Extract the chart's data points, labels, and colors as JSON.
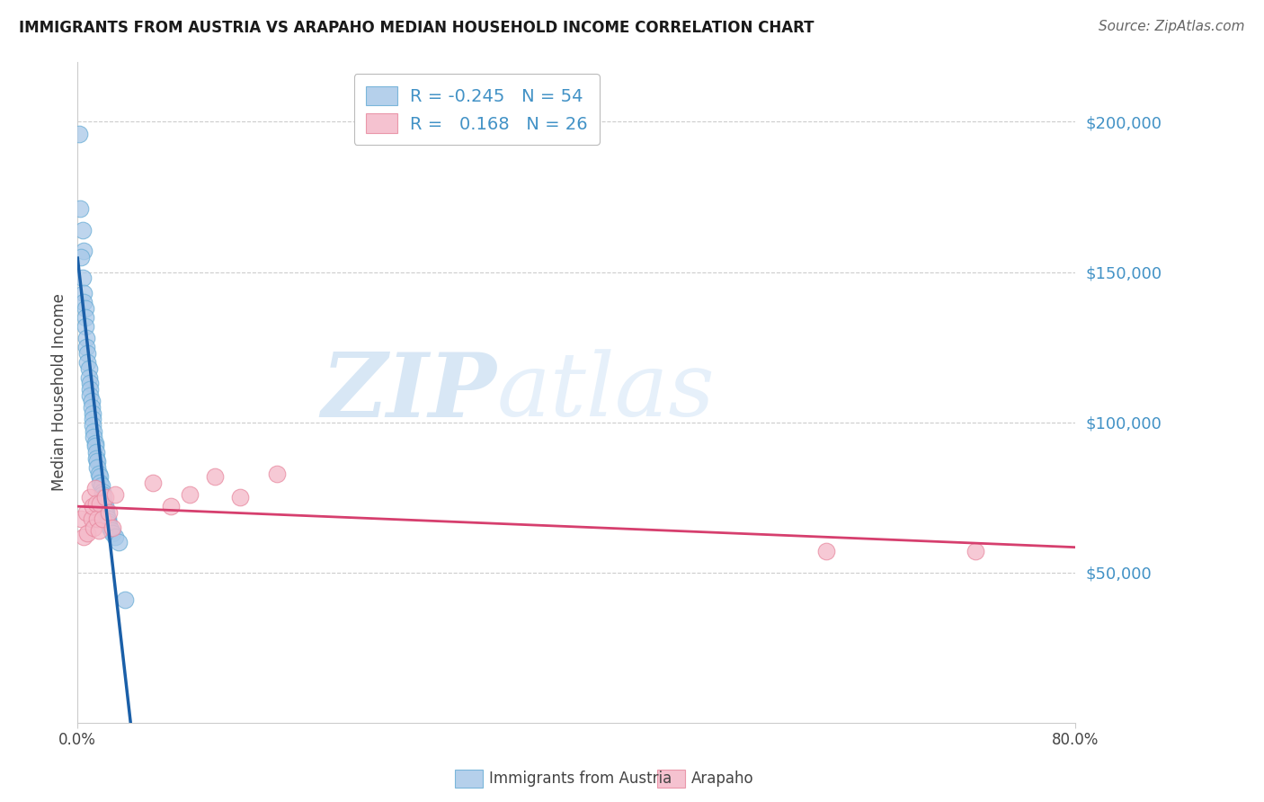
{
  "title": "IMMIGRANTS FROM AUSTRIA VS ARAPAHO MEDIAN HOUSEHOLD INCOME CORRELATION CHART",
  "source": "Source: ZipAtlas.com",
  "ylabel": "Median Household Income",
  "x_min": 0.0,
  "x_max": 0.8,
  "y_min": 0,
  "y_max": 220000,
  "blue_color": "#a8c8e8",
  "blue_edge_color": "#6baed6",
  "pink_color": "#f4b8c8",
  "pink_edge_color": "#e88aa0",
  "blue_line_color": "#1a5fa8",
  "pink_line_color": "#d63f6e",
  "right_label_color": "#4292c6",
  "legend_blue_label": "Immigrants from Austria",
  "legend_pink_label": "Arapaho",
  "legend_r_blue": "-0.245",
  "legend_n_blue": "54",
  "legend_r_pink": "0.168",
  "legend_n_pink": "26",
  "blue_scatter_x": [
    0.001,
    0.002,
    0.004,
    0.005,
    0.003,
    0.004,
    0.005,
    0.005,
    0.006,
    0.006,
    0.006,
    0.007,
    0.007,
    0.008,
    0.008,
    0.009,
    0.009,
    0.01,
    0.01,
    0.01,
    0.011,
    0.011,
    0.012,
    0.012,
    0.012,
    0.013,
    0.013,
    0.014,
    0.014,
    0.015,
    0.015,
    0.016,
    0.016,
    0.017,
    0.018,
    0.018,
    0.019,
    0.02,
    0.02,
    0.021,
    0.021,
    0.022,
    0.022,
    0.023,
    0.023,
    0.024,
    0.024,
    0.025,
    0.026,
    0.027,
    0.028,
    0.03,
    0.033,
    0.038
  ],
  "blue_scatter_y": [
    196000,
    171000,
    164000,
    157000,
    155000,
    148000,
    143000,
    140000,
    138000,
    135000,
    132000,
    128000,
    125000,
    123000,
    120000,
    118000,
    115000,
    113000,
    111000,
    109000,
    107000,
    105000,
    103000,
    101000,
    99000,
    97000,
    95000,
    93000,
    92000,
    90000,
    88000,
    87000,
    85000,
    83000,
    82000,
    80000,
    79000,
    77000,
    76000,
    75000,
    73000,
    72000,
    71000,
    70000,
    69000,
    68000,
    67000,
    66000,
    65000,
    64000,
    63000,
    62000,
    60000,
    41000
  ],
  "pink_scatter_x": [
    0.003,
    0.005,
    0.007,
    0.008,
    0.01,
    0.011,
    0.012,
    0.013,
    0.014,
    0.015,
    0.016,
    0.017,
    0.018,
    0.02,
    0.022,
    0.025,
    0.028,
    0.03,
    0.06,
    0.075,
    0.09,
    0.11,
    0.13,
    0.16,
    0.6,
    0.72
  ],
  "pink_scatter_y": [
    68000,
    62000,
    70000,
    63000,
    75000,
    68000,
    72000,
    65000,
    78000,
    73000,
    68000,
    64000,
    73000,
    68000,
    75000,
    70000,
    65000,
    76000,
    80000,
    72000,
    76000,
    82000,
    75000,
    83000,
    57000,
    57000
  ],
  "watermark_zip": "ZIP",
  "watermark_atlas": "atlas",
  "background_color": "#ffffff",
  "grid_color": "#cccccc",
  "spine_color": "#cccccc"
}
